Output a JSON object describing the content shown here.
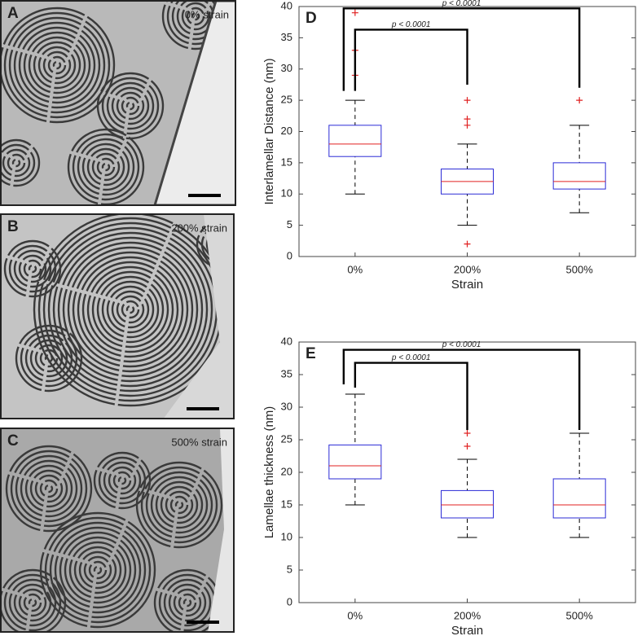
{
  "panels": [
    {
      "label": "A",
      "caption": "0% strain"
    },
    {
      "label": "B",
      "caption": "200% strain"
    },
    {
      "label": "C",
      "caption": "500% strain"
    }
  ],
  "chart_data": [
    {
      "type": "box",
      "panel_label": "D",
      "y_label": "Interlamellar Distance (nm)",
      "x_label": "Strain",
      "categories": [
        "0%",
        "200%",
        "500%"
      ],
      "boxes": [
        {
          "min": 10,
          "q1": 16,
          "median": 18,
          "q3": 21,
          "max": 25,
          "outliers": [
            29,
            33,
            39
          ]
        },
        {
          "min": 5,
          "q1": 10,
          "median": 12,
          "q3": 14,
          "max": 18,
          "outliers": [
            2,
            21,
            22,
            25
          ]
        },
        {
          "min": 7,
          "q1": 10.8,
          "median": 12,
          "q3": 15,
          "max": 21,
          "outliers": [
            25
          ]
        }
      ],
      "box_color": "#2b2bd6",
      "median_color": "#e02020",
      "whisker_color": "#000000",
      "outlier_color": "#e02020",
      "ylim": [
        0,
        40
      ],
      "yticks": [
        0,
        5,
        10,
        15,
        20,
        25,
        30,
        35,
        40
      ],
      "annotations": [
        {
          "text": "p < 0.0001",
          "from": 0,
          "to": 1,
          "y": 36.3,
          "bottom": [
            26.5,
            27.5
          ]
        },
        {
          "text": "p < 0.0001",
          "from": 0,
          "to": 2,
          "y": 39.7,
          "bottom": [
            26.5,
            27
          ]
        }
      ]
    },
    {
      "type": "box",
      "panel_label": "E",
      "y_label": "Lamellae thickness (nm)",
      "x_label": "Strain",
      "categories": [
        "0%",
        "200%",
        "500%"
      ],
      "boxes": [
        {
          "min": 15,
          "q1": 19,
          "median": 21,
          "q3": 24.2,
          "max": 32,
          "outliers": []
        },
        {
          "min": 10,
          "q1": 13,
          "median": 15,
          "q3": 17.2,
          "max": 22,
          "outliers": [
            24,
            26
          ]
        },
        {
          "min": 10,
          "q1": 13,
          "median": 15,
          "q3": 19,
          "max": 26,
          "outliers": []
        }
      ],
      "box_color": "#2b2bd6",
      "median_color": "#e02020",
      "whisker_color": "#000000",
      "outlier_color": "#e02020",
      "ylim": [
        0,
        40
      ],
      "yticks": [
        0,
        5,
        10,
        15,
        20,
        25,
        30,
        35,
        40
      ],
      "annotations": [
        {
          "text": "p < 0.0001",
          "from": 0,
          "to": 1,
          "y": 36.8,
          "bottom": [
            33,
            26.5
          ]
        },
        {
          "text": "p < 0.0001",
          "from": 0,
          "to": 2,
          "y": 38.8,
          "bottom": [
            33.5,
            26.5
          ]
        }
      ]
    }
  ]
}
